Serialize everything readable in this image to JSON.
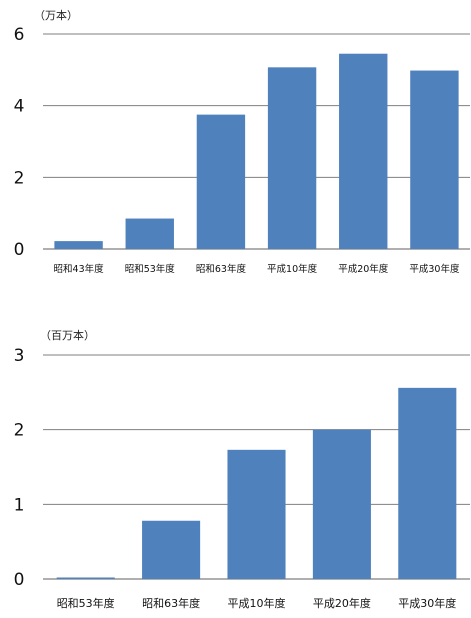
{
  "chart_data": [
    {
      "type": "bar",
      "unit_label": "（万本）",
      "categories": [
        "昭和43年度",
        "昭和53年度",
        "昭和63年度",
        "平成10年度",
        "平成20年度",
        "平成30年度"
      ],
      "values": [
        0.22,
        0.85,
        3.75,
        5.07,
        5.45,
        4.98
      ],
      "y_ticks": [
        "0",
        "2",
        "4",
        "6"
      ],
      "ylim": [
        0,
        6
      ],
      "grid": true,
      "bar_color": "#4f81bd"
    },
    {
      "type": "bar",
      "unit_label": "（百万本）",
      "categories": [
        "昭和53年度",
        "昭和63年度",
        "平成10年度",
        "平成20年度",
        "平成30年度"
      ],
      "values": [
        0.02,
        0.78,
        1.73,
        2.0,
        2.56
      ],
      "y_ticks": [
        "0",
        "1",
        "2",
        "3"
      ],
      "ylim": [
        0,
        3
      ],
      "grid": true,
      "bar_color": "#4f81bd"
    }
  ]
}
